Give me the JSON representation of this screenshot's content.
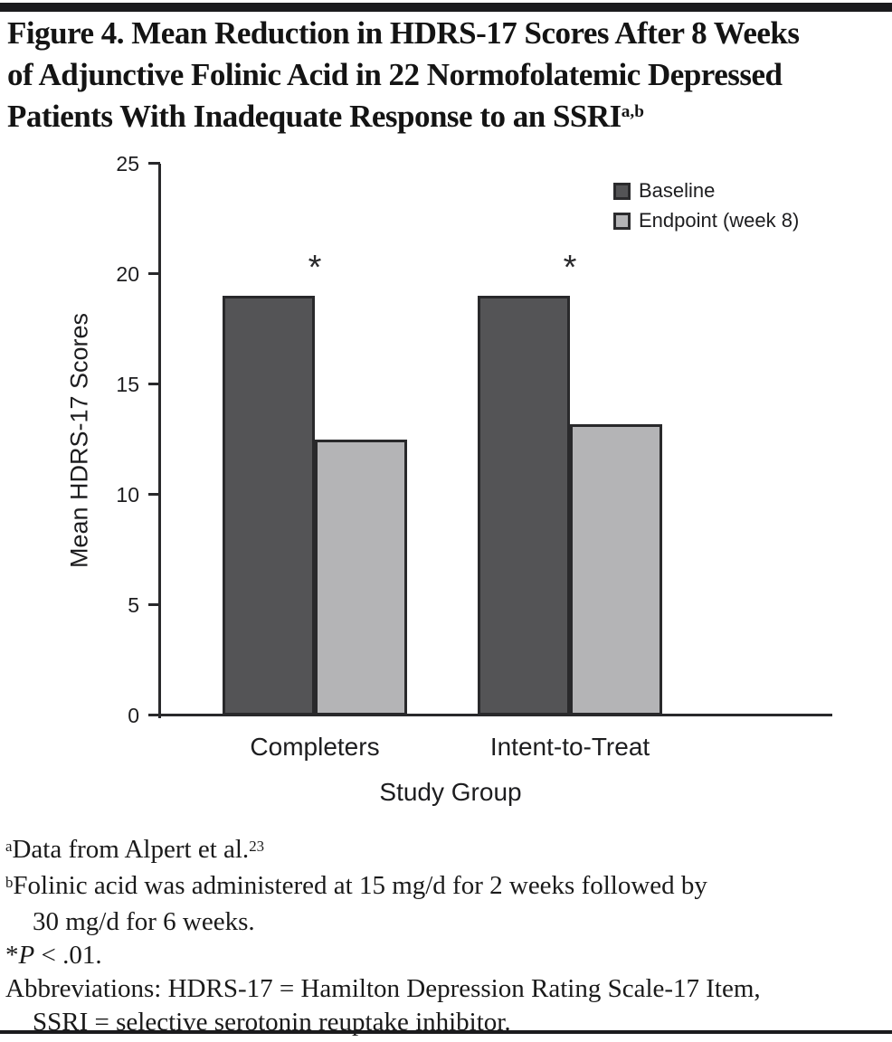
{
  "figure": {
    "title_lines": [
      "Figure 4. Mean Reduction in HDRS-17 Scores After 8 Weeks",
      "of Adjunctive Folinic Acid in 22 Normofolatemic Depressed",
      "Patients With Inadequate Response to an SSRI"
    ],
    "title_superscript": "a,b"
  },
  "chart_data": {
    "type": "bar",
    "categories": [
      "Completers",
      "Intent-to-Treat"
    ],
    "series": [
      {
        "name": "Baseline",
        "values": [
          19.0,
          19.0
        ],
        "color": "#545456"
      },
      {
        "name": "Endpoint (week 8)",
        "values": [
          12.5,
          13.2
        ],
        "color": "#b4b4b6"
      }
    ],
    "xlabel": "Study Group",
    "ylabel": "Mean HDRS-17 Scores",
    "ylim": [
      0,
      25
    ],
    "yticks": [
      0,
      5,
      10,
      15,
      20,
      25
    ],
    "grid": false,
    "legend_position": "top-right",
    "annotations": [
      {
        "text": "*",
        "category_index": 0
      },
      {
        "text": "*",
        "category_index": 1
      }
    ]
  },
  "footnotes": [
    [
      {
        "s": "sup",
        "t": "a"
      },
      {
        "t": "Data from Alpert et al."
      },
      {
        "s": "sup",
        "t": "23"
      }
    ],
    [
      {
        "s": "sup",
        "t": "b"
      },
      {
        "t": "Folinic acid was administered at 15 mg/d for 2 weeks followed by"
      }
    ],
    [
      {
        "s": "ind",
        "t": "30 mg/d for 6 weeks."
      }
    ],
    [
      {
        "t": "*"
      },
      {
        "s": "i",
        "t": "P"
      },
      {
        "t": " < .01."
      }
    ],
    [
      {
        "t": "Abbreviations: HDRS-17 = Hamilton Depression Rating Scale-17 Item,"
      }
    ],
    [
      {
        "s": "ind",
        "t": "SSRI = selective serotonin reuptake inhibitor."
      }
    ]
  ],
  "colors": {
    "baseline_bar": "#545456",
    "endpoint_bar": "#b4b4b6",
    "axis": "#29292b",
    "rule": "#1b1b1d",
    "text": "#1d1d1f"
  }
}
